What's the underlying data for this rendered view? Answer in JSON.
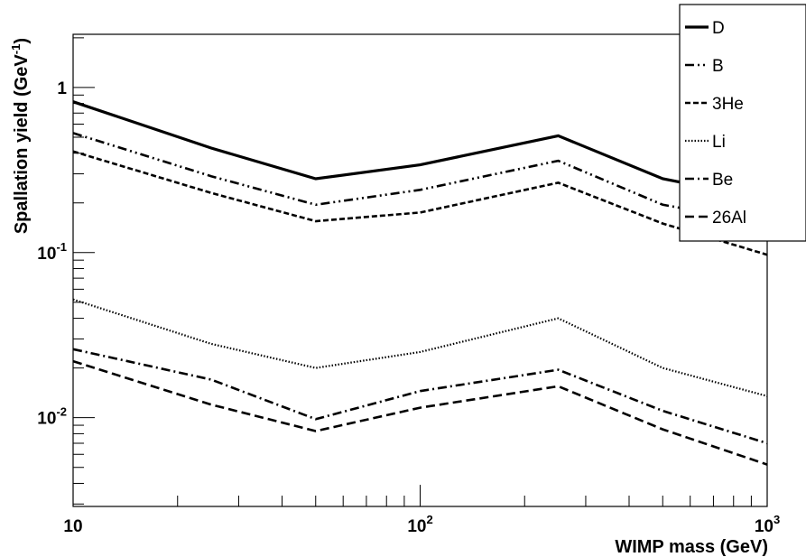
{
  "chart_data": {
    "type": "line",
    "title": "",
    "xlabel": "WIMP mass (GeV)",
    "ylabel_main": "Spallation yield (GeV",
    "ylabel_sup": "-1",
    "ylabel_close": ")",
    "x_scale": "log",
    "y_scale": "log",
    "xlim": [
      10,
      1000
    ],
    "ylim": [
      0.0029,
      2.1
    ],
    "grid": false,
    "legend_position": "top-right",
    "x_ticks": [
      {
        "value": 10,
        "base": "10",
        "exp": ""
      },
      {
        "value": 100,
        "base": "10",
        "exp": "2"
      },
      {
        "value": 1000,
        "base": "10",
        "exp": "3"
      }
    ],
    "y_ticks": [
      {
        "value": 1,
        "base": "1",
        "exp": ""
      },
      {
        "value": 0.1,
        "base": "10",
        "exp": "-1"
      },
      {
        "value": 0.01,
        "base": "10",
        "exp": "-2"
      }
    ],
    "x": [
      10,
      25,
      50,
      100,
      250,
      500,
      1000
    ],
    "series": [
      {
        "name": "D",
        "dash": "",
        "stroke_width": 3.2,
        "values": [
          0.82,
          0.43,
          0.28,
          0.34,
          0.51,
          0.28,
          0.21
        ]
      },
      {
        "name": "B",
        "dash": "10,4,2,4,2,4",
        "stroke_width": 2.6,
        "values": [
          0.53,
          0.29,
          0.195,
          0.24,
          0.36,
          0.195,
          0.15
        ]
      },
      {
        "name": "3He",
        "dash": "6,3",
        "stroke_width": 2.6,
        "values": [
          0.41,
          0.23,
          0.155,
          0.175,
          0.265,
          0.15,
          0.097
        ]
      },
      {
        "name": "Li",
        "dash": "1.5,2",
        "stroke_width": 2.2,
        "values": [
          0.052,
          0.028,
          0.02,
          0.025,
          0.04,
          0.02,
          0.0135
        ]
      },
      {
        "name": "Be",
        "dash": "10,4,2,4",
        "stroke_width": 2.6,
        "values": [
          0.026,
          0.017,
          0.0098,
          0.0145,
          0.0195,
          0.011,
          0.007
        ]
      },
      {
        "name": "26Al",
        "dash": "10,5",
        "stroke_width": 2.6,
        "values": [
          0.022,
          0.012,
          0.0083,
          0.0115,
          0.0155,
          0.0085,
          0.0052
        ]
      }
    ]
  }
}
